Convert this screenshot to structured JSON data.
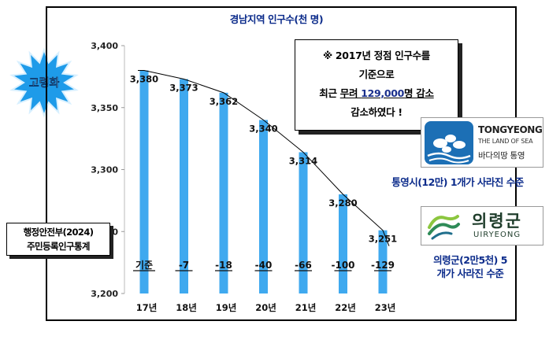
{
  "chart_data": {
    "type": "bar",
    "title": "경남지역 인구수(천 명)",
    "categories": [
      "17년",
      "18년",
      "19년",
      "20년",
      "21년",
      "22년",
      "23년"
    ],
    "values": [
      3380,
      3373,
      3362,
      3340,
      3314,
      3280,
      3251
    ],
    "data_labels": [
      "3,380",
      "3,373",
      "3,362",
      "3,340",
      "3,314",
      "3,280",
      "3,251"
    ],
    "change_labels": [
      "기준",
      "-7",
      "-18",
      "-40",
      "-66",
      "-100",
      "-129"
    ],
    "ylim": [
      3200,
      3400
    ],
    "yticks": [
      3200,
      3250,
      3300,
      3350,
      3400
    ],
    "ytick_labels": [
      "3,200",
      "3,250",
      "3,300",
      "3,350",
      "3,400"
    ],
    "trend_line": true,
    "grid": false,
    "bar_color": "#3fa9ef"
  },
  "badge": {
    "label": "고령화",
    "color": "#1e9be9"
  },
  "callout": {
    "line1_a": "※ 2017년 정점 인구수를",
    "line2": "기준으로",
    "line3_a": "최근 ",
    "line3_b": "무려 ",
    "line3_num": "129,000",
    "line3_c": "명 감소",
    "line4": "감소하였다 !"
  },
  "tongyeong": {
    "name_en": "TONGYEONG",
    "slogan_en": "THE LAND OF SEA",
    "slogan_ko": "바다의땅 통영",
    "logo_icon": "tongyeong-logo-icon",
    "color": "#1c6fb5",
    "caption": "통영시(12만) 1개가 사라진 수준"
  },
  "uiryeong": {
    "name_ko": "의령군",
    "name_en": "UIRYEONG",
    "logo_icon": "uiryeong-logo-icon",
    "color": "#2e8b57",
    "caption_line1": "의령군(2만5천)   5",
    "caption_line2": "개가 사라진 수준"
  },
  "source": {
    "line1": "행정안전부(2024)",
    "line2": "주민등록인구통계"
  }
}
